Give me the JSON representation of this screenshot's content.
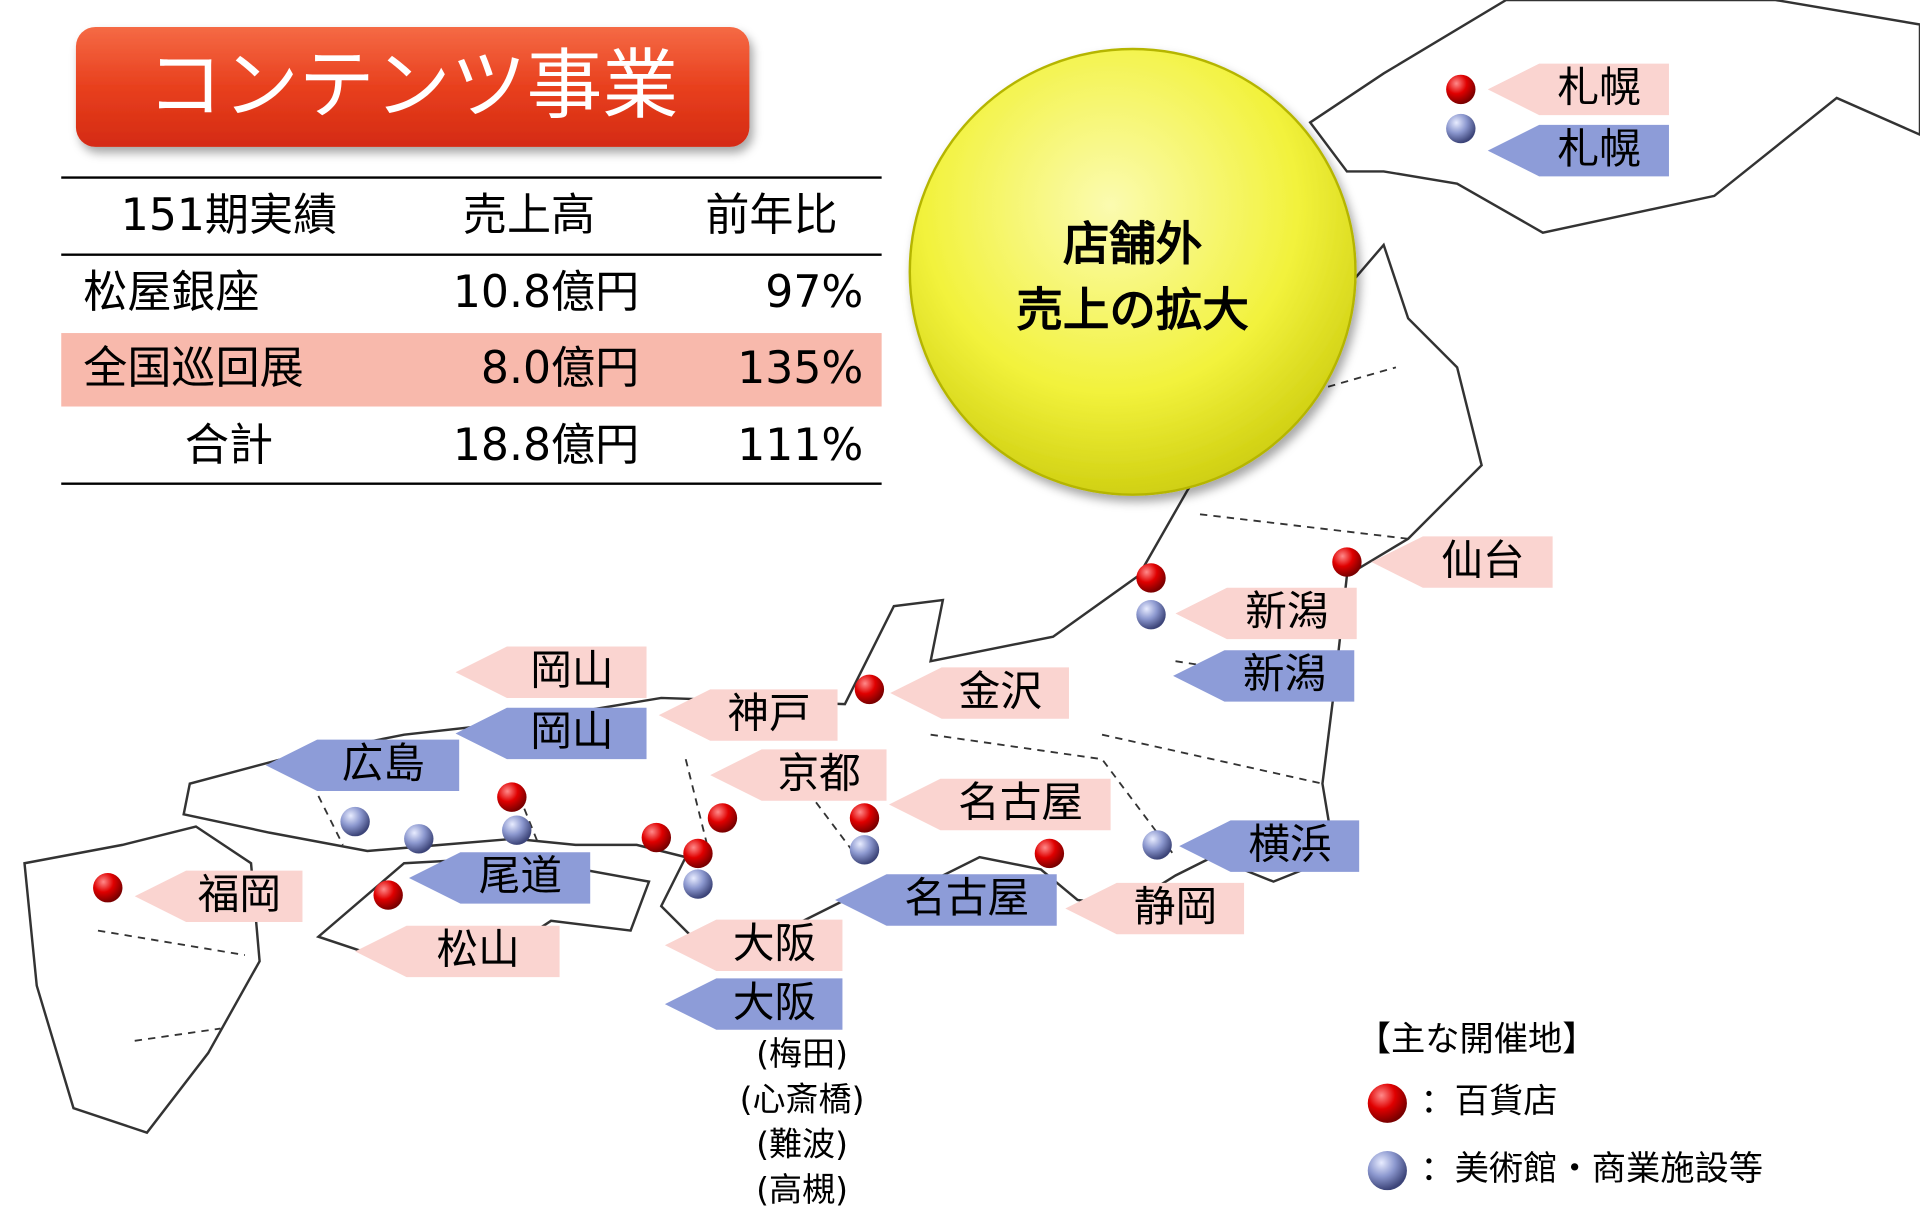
{
  "title": "コンテンツ事業",
  "table": {
    "header": [
      "151期実績",
      "売上高",
      "前年比"
    ],
    "rows": [
      [
        "松屋銀座",
        "10.8億円",
        "97%"
      ],
      [
        "全国巡回展",
        "8.0億円",
        "135%"
      ],
      [
        "合計",
        "18.8億円",
        "111%"
      ]
    ]
  },
  "highlight": {
    "lines": [
      "店舗外",
      "売上の拡大"
    ]
  },
  "map": {
    "labels": [
      "札幌",
      "札幌",
      "仙台",
      "新潟",
      "新潟",
      "金沢",
      "岡山",
      "岡山",
      "神戸",
      "広島",
      "京都",
      "名古屋",
      "横浜",
      "尾道",
      "福岡",
      "名古屋",
      "静岡",
      "松山",
      "大阪",
      "大阪"
    ],
    "osaka_venues": [
      "(梅田)",
      "(心斎橋)",
      "(難波)",
      "(高槻)"
    ]
  },
  "legend": {
    "title": "【主な開催地】",
    "items": [
      "：百貨店",
      "：美術館・商業施設等"
    ]
  }
}
